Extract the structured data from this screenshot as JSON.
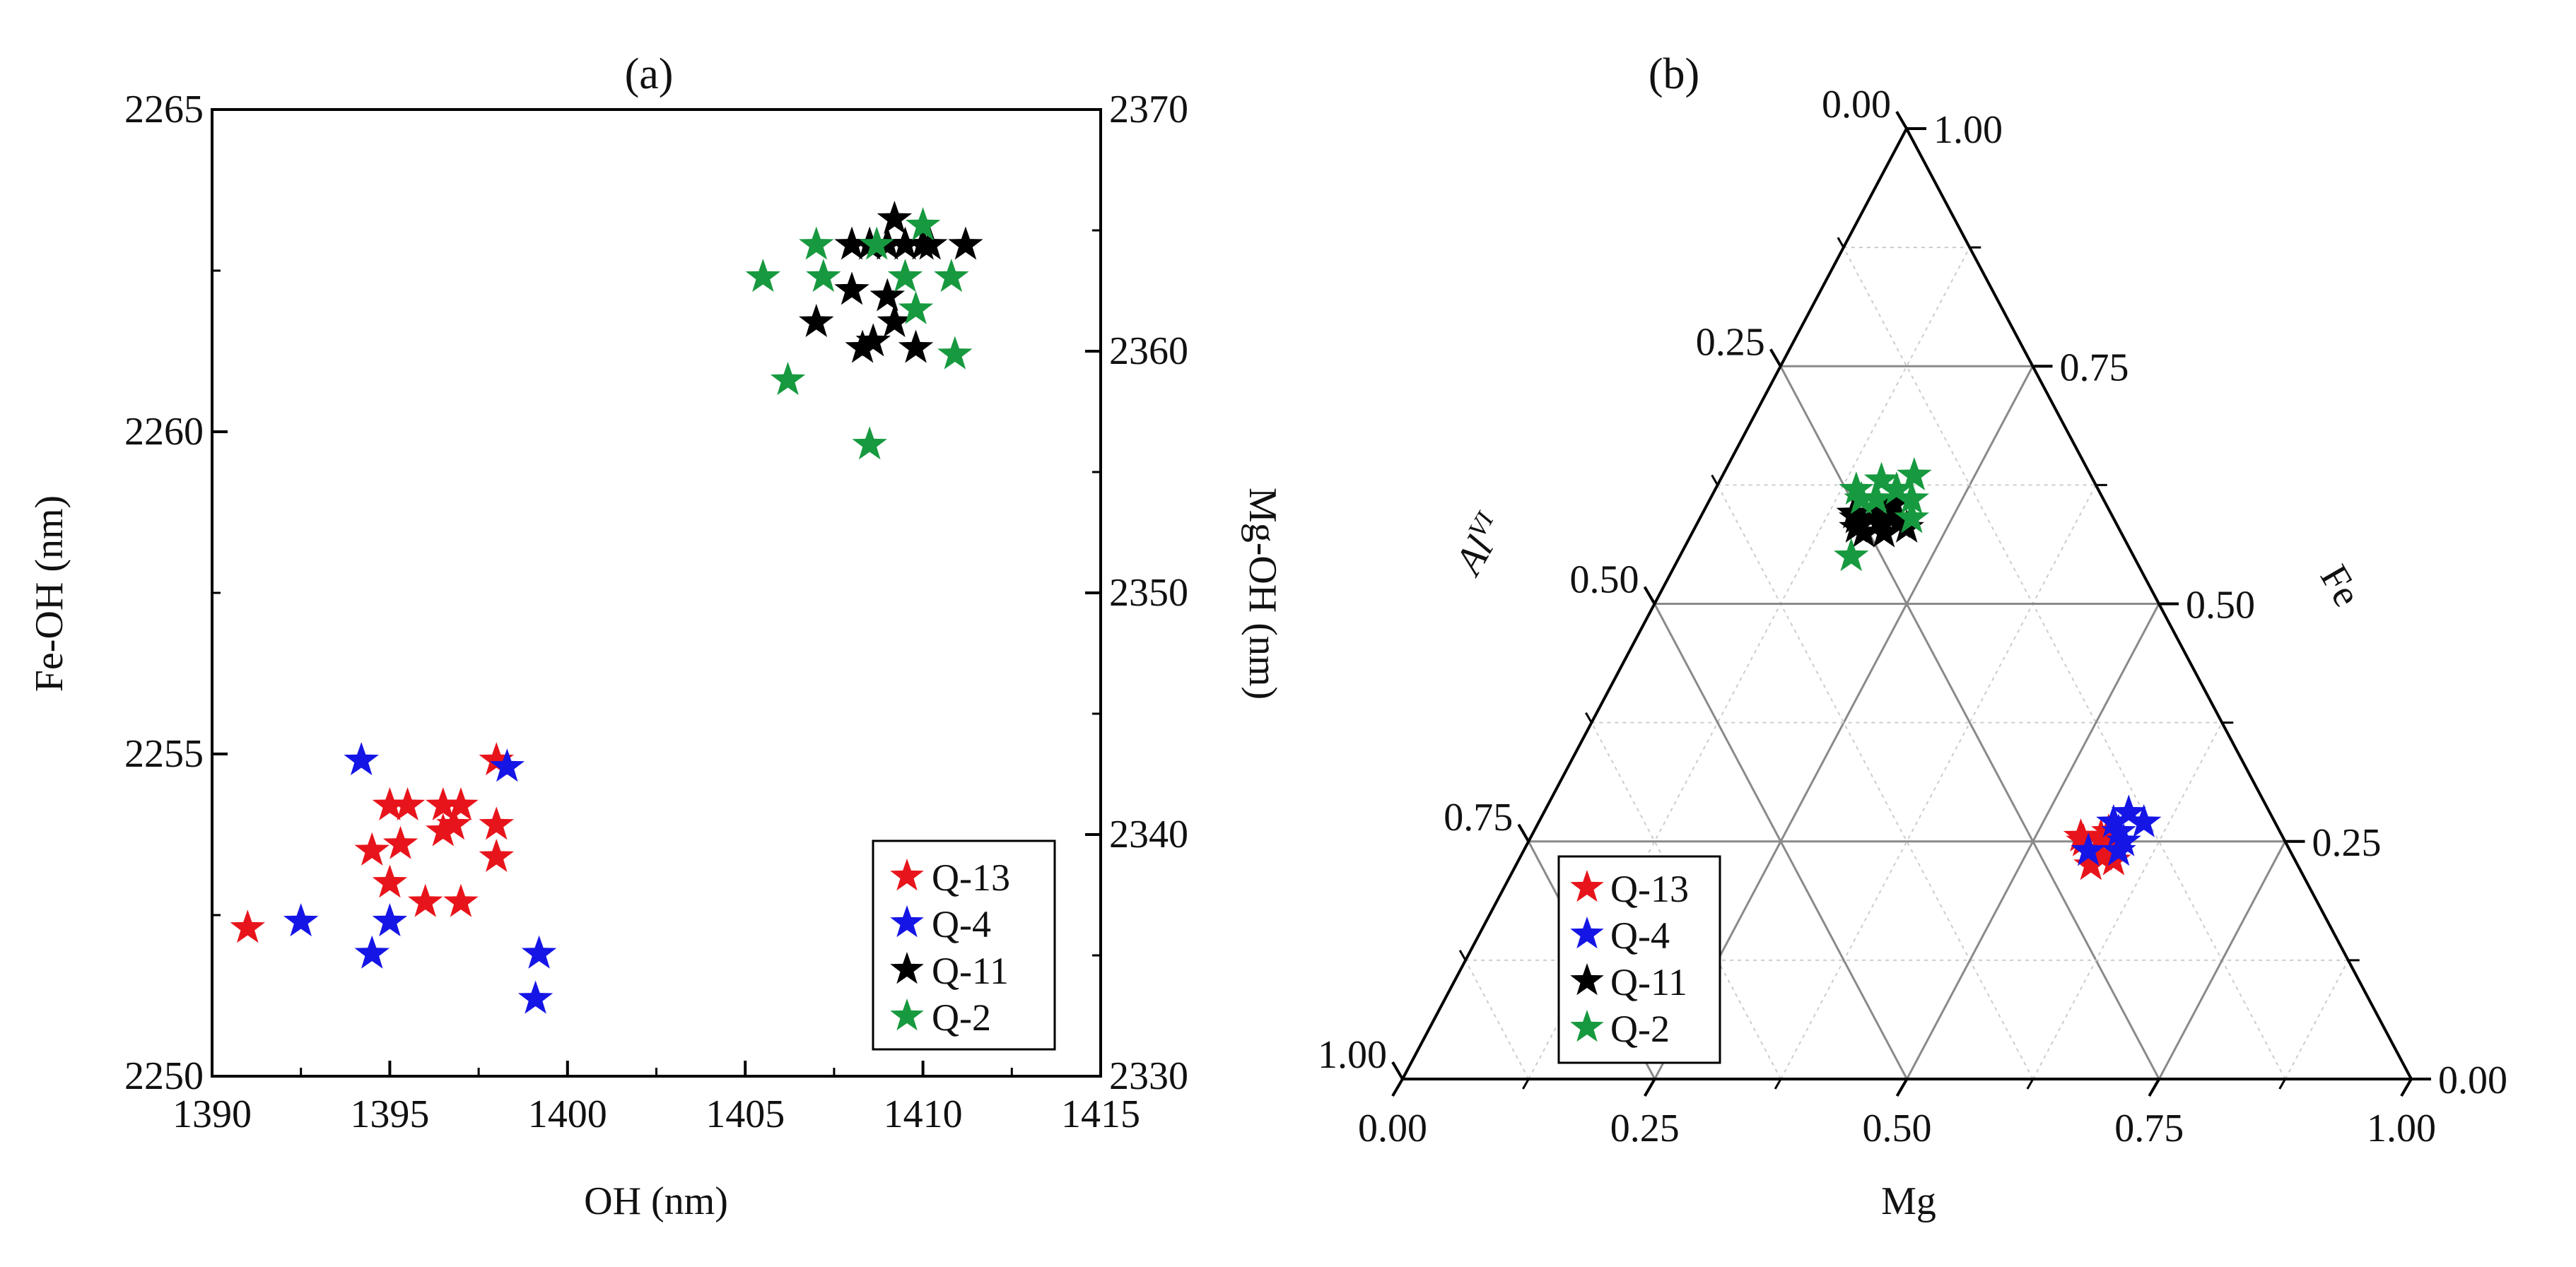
{
  "chart_data": [
    {
      "id": "a",
      "panel_label": "(a)",
      "type": "scatter",
      "xlabel": "OH (nm)",
      "ylabel": "Fe-OH (nm)",
      "y2label": "Mg-OH (nm)",
      "xlim": [
        1390,
        1415
      ],
      "ylim": [
        2250,
        2265
      ],
      "y2lim": [
        2330,
        2370
      ],
      "xticks": [
        "1390",
        "1395",
        "1400",
        "1405",
        "1410",
        "1415"
      ],
      "yticks": [
        "2250",
        "2255",
        "2260",
        "2265"
      ],
      "y2ticks": [
        "2330",
        "2340",
        "2350",
        "2360",
        "2370"
      ],
      "legend_position": "bottom-right",
      "series": [
        {
          "name": "Q-13",
          "color": "#e8141b",
          "points": [
            [
              1391.0,
              2252.3
            ],
            [
              1394.5,
              2253.5
            ],
            [
              1395.0,
              2254.2
            ],
            [
              1395.5,
              2254.2
            ],
            [
              1395.3,
              2253.6
            ],
            [
              1395.0,
              2253.0
            ],
            [
              1396.0,
              2252.7
            ],
            [
              1396.5,
              2254.2
            ],
            [
              1396.5,
              2253.8
            ],
            [
              1397.0,
              2254.2
            ],
            [
              1396.8,
              2253.9
            ],
            [
              1397.0,
              2252.7
            ],
            [
              1398.0,
              2253.9
            ],
            [
              1398.0,
              2253.4
            ],
            [
              1398.0,
              2254.9
            ]
          ]
        },
        {
          "name": "Q-4",
          "color": "#1515e6",
          "points": [
            [
              1392.5,
              2252.4
            ],
            [
              1394.2,
              2254.9
            ],
            [
              1394.5,
              2251.9
            ],
            [
              1395.0,
              2252.4
            ],
            [
              1398.3,
              2254.8
            ],
            [
              1399.2,
              2251.9
            ],
            [
              1399.1,
              2251.2
            ]
          ]
        },
        {
          "name": "Q-11",
          "color": "#000000",
          "points": [
            [
              1407.0,
              2261.7
            ],
            [
              1408.0,
              2262.2
            ],
            [
              1408.0,
              2262.9
            ],
            [
              1408.3,
              2261.3
            ],
            [
              1408.5,
              2262.9
            ],
            [
              1408.6,
              2261.4
            ],
            [
              1409.0,
              2262.9
            ],
            [
              1409.0,
              2262.1
            ],
            [
              1409.2,
              2263.3
            ],
            [
              1409.2,
              2261.7
            ],
            [
              1409.5,
              2262.9
            ],
            [
              1409.8,
              2261.3
            ],
            [
              1410.0,
              2262.9
            ],
            [
              1410.2,
              2262.9
            ],
            [
              1411.2,
              2262.9
            ]
          ]
        },
        {
          "name": "Q-2",
          "color": "#17993f",
          "points": [
            [
              1405.5,
              2262.4
            ],
            [
              1406.2,
              2260.8
            ],
            [
              1407.0,
              2262.9
            ],
            [
              1407.2,
              2262.4
            ],
            [
              1408.5,
              2259.8
            ],
            [
              1408.7,
              2262.9
            ],
            [
              1409.5,
              2262.4
            ],
            [
              1410.0,
              2263.2
            ],
            [
              1409.8,
              2261.9
            ],
            [
              1410.8,
              2262.4
            ],
            [
              1410.9,
              2261.2
            ]
          ]
        }
      ]
    },
    {
      "id": "b",
      "panel_label": "(b)",
      "type": "ternary-scatter",
      "bottom_axis": "Mg",
      "right_axis": "Fe",
      "left_axis": "Al",
      "left_axis_sup": "VI",
      "tick_labels": [
        "0.00",
        "0.25",
        "0.50",
        "0.75",
        "1.00"
      ],
      "legend_position": "bottom-left",
      "series": [
        {
          "name": "Q-13",
          "color": "#e8141b",
          "points": [
            [
              0.55,
              0.25
            ],
            [
              0.57,
              0.26
            ],
            [
              0.58,
              0.25
            ],
            [
              0.56,
              0.24
            ],
            [
              0.575,
              0.235
            ],
            [
              0.585,
              0.245
            ],
            [
              0.565,
              0.255
            ],
            [
              0.59,
              0.23
            ],
            [
              0.545,
              0.255
            ],
            [
              0.57,
              0.225
            ]
          ]
        },
        {
          "name": "Q-4",
          "color": "#1515e6",
          "points": [
            [
              0.57,
              0.27
            ],
            [
              0.58,
              0.28
            ],
            [
              0.6,
              0.27
            ],
            [
              0.58,
              0.26
            ],
            [
              0.59,
              0.24
            ],
            [
              0.56,
              0.24
            ],
            [
              0.59,
              0.25
            ]
          ]
        },
        {
          "name": "Q-11",
          "color": "#000000",
          "points": [
            [
              0.15,
              0.595
            ],
            [
              0.17,
              0.6
            ],
            [
              0.19,
              0.59
            ],
            [
              0.16,
              0.58
            ],
            [
              0.18,
              0.585
            ],
            [
              0.2,
              0.585
            ],
            [
              0.17,
              0.575
            ],
            [
              0.19,
              0.575
            ],
            [
              0.21,
              0.58
            ],
            [
              0.155,
              0.59
            ],
            [
              0.185,
              0.605
            ]
          ]
        },
        {
          "name": "Q-2",
          "color": "#17993f",
          "points": [
            [
              0.14,
              0.62
            ],
            [
              0.16,
              0.63
            ],
            [
              0.18,
              0.62
            ],
            [
              0.2,
              0.61
            ],
            [
              0.21,
              0.59
            ],
            [
              0.17,
              0.55
            ],
            [
              0.15,
              0.61
            ],
            [
              0.19,
              0.635
            ],
            [
              0.165,
              0.61
            ]
          ]
        }
      ]
    }
  ]
}
